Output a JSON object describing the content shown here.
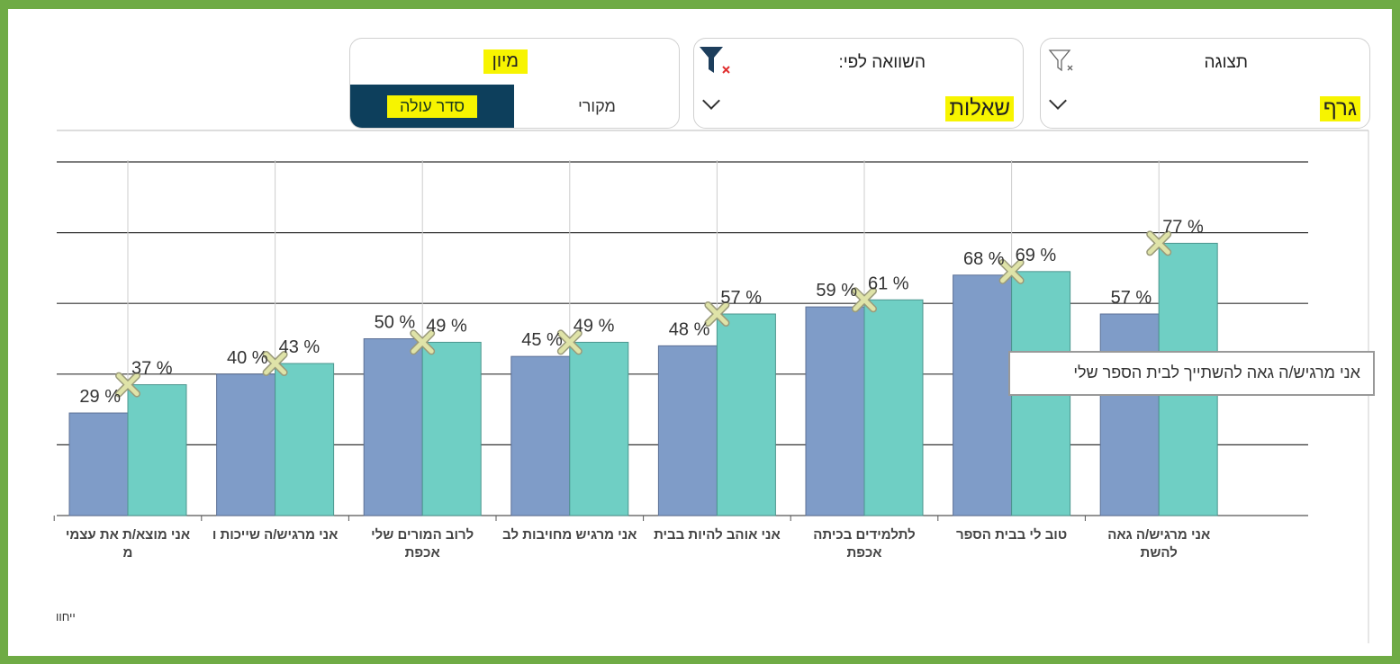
{
  "display_panel": {
    "title": "תצוגה",
    "value": "גרף"
  },
  "compare_panel": {
    "title": "השוואה לפי:",
    "value": "שאלות"
  },
  "sort_panel": {
    "title": "מיון",
    "options": [
      "מקורי",
      "סדר עולה"
    ]
  },
  "tooltip": "אני מרגיש/ה גאה להשתייך לבית הספר שלי",
  "footer_text": "ייחוו",
  "chart_data": {
    "type": "bar",
    "categories": [
      "אני מוצא/ת את עצמי מ",
      "אני מרגיש/ה שייכות ו",
      "לרוב המורים שלי אכפת",
      "אני מרגיש מחויבות לב",
      "אני אוהב להיות בבית",
      "לתלמידים בכיתה אכפת",
      "טוב לי בבית הספר",
      "אני מרגיש/ה גאה להשת"
    ],
    "series": [
      {
        "color": "#7f9cc8",
        "values": [
          29,
          40,
          50,
          45,
          48,
          59,
          68,
          57
        ],
        "value_labels": [
          "29 %",
          "40 %",
          "50 %",
          "45 %",
          "48 %",
          "59 %",
          "68 %",
          "57 %"
        ]
      },
      {
        "color": "#6fcfc4",
        "values": [
          37,
          43,
          49,
          49,
          57,
          61,
          69,
          77
        ],
        "value_labels": [
          "37 %",
          "43 %",
          "49 %",
          "49 %",
          "57 %",
          "61 %",
          "69 %",
          "77 %"
        ]
      }
    ],
    "ylim": [
      0,
      100
    ],
    "yticks": [
      0,
      20,
      40,
      60,
      80,
      100
    ],
    "grid": true
  }
}
